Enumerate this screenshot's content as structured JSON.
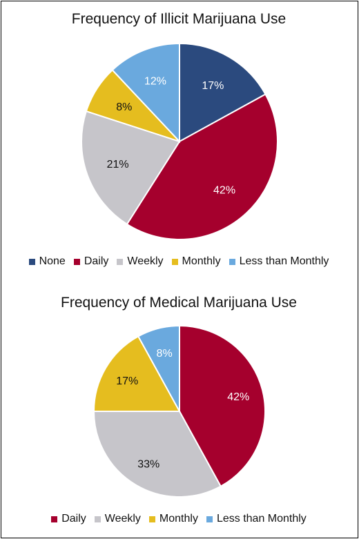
{
  "chart_data": [
    {
      "type": "pie",
      "title": "Frequency of Illicit Marijuana Use",
      "slices": [
        {
          "label": "None",
          "value": 17,
          "data_label": "17%",
          "color": "#2b4a7e"
        },
        {
          "label": "Daily",
          "value": 42,
          "data_label": "42%",
          "color": "#a5002d"
        },
        {
          "label": "Weekly",
          "value": 21,
          "data_label": "21%",
          "color": "#c6c5ca"
        },
        {
          "label": "Monthly",
          "value": 8,
          "data_label": "8%",
          "color": "#e5bd1f"
        },
        {
          "label": "Less than Monthly",
          "value": 12,
          "data_label": "12%",
          "color": "#6aa9de"
        }
      ],
      "legend_placement": "bottom"
    },
    {
      "type": "pie",
      "title": "Frequency of Medical Marijuana Use",
      "slices": [
        {
          "label": "Daily",
          "value": 42,
          "data_label": "42%",
          "color": "#a5002d"
        },
        {
          "label": "Weekly",
          "value": 33,
          "data_label": "33%",
          "color": "#c6c5ca"
        },
        {
          "label": "Monthly",
          "value": 17,
          "data_label": "17%",
          "color": "#e5bd1f"
        },
        {
          "label": "Less than Monthly",
          "value": 8,
          "data_label": "8%",
          "color": "#6aa9de"
        }
      ],
      "legend_placement": "bottom"
    }
  ]
}
